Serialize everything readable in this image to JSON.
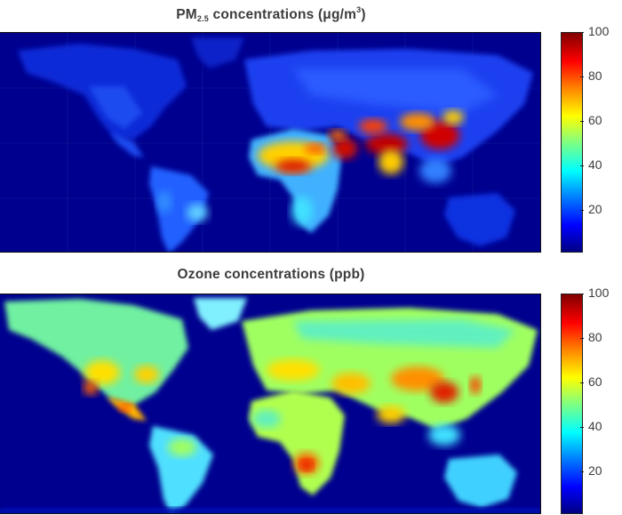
{
  "panels": [
    {
      "title_main": "PM",
      "title_sub": "2.5",
      "title_rest": " concentrations (μg/m",
      "title_sup": "3",
      "title_end": ")",
      "colorbar_ticks": [
        "100",
        "80",
        "60",
        "40",
        "20"
      ]
    },
    {
      "title": "Ozone concentrations (ppb)",
      "colorbar_ticks": [
        "100",
        "80",
        "60",
        "40",
        "20"
      ]
    }
  ],
  "colors": {
    "ocean": "#00008f",
    "cmap": [
      "#000083",
      "#0000ff",
      "#0080ff",
      "#00ffff",
      "#80ff80",
      "#ffff00",
      "#ff8000",
      "#ff0000",
      "#800000"
    ]
  }
}
